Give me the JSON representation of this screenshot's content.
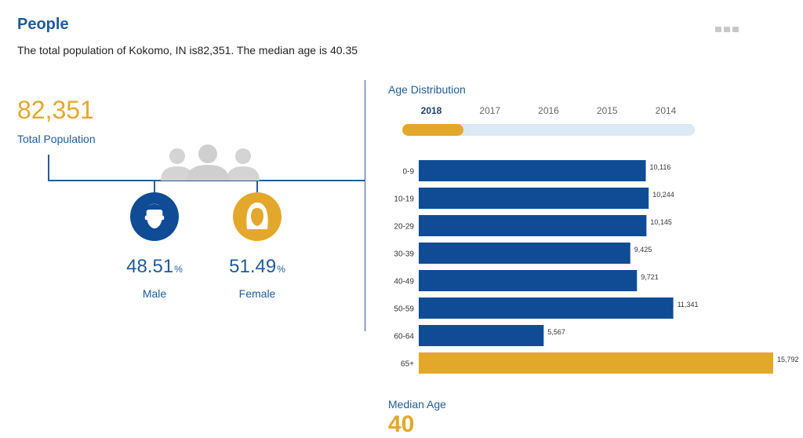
{
  "header": {
    "title": "People",
    "summary": "The total population of Kokomo, IN is82,351. The median age is 40.35"
  },
  "population": {
    "total": "82,351",
    "total_label": "Total Population"
  },
  "gender": {
    "male": {
      "value": "48.51",
      "unit": "%",
      "label": "Male"
    },
    "female": {
      "value": "51.49",
      "unit": "%",
      "label": "Female"
    }
  },
  "age_distribution": {
    "title": "Age Distribution",
    "years": [
      "2018",
      "2017",
      "2016",
      "2015",
      "2014"
    ],
    "selected_year": "2018"
  },
  "median": {
    "label": "Median Age",
    "value": "40"
  },
  "colors": {
    "primary": "#0f4c95",
    "accent": "#e3a82b",
    "track": "#dbe9f5"
  },
  "chart_data": {
    "type": "bar",
    "orientation": "horizontal",
    "categories": [
      "0-9",
      "10-19",
      "20-29",
      "30-39",
      "40-49",
      "50-59",
      "60-64",
      "65+"
    ],
    "values": [
      10116,
      10244,
      10145,
      9425,
      9721,
      11341,
      5567,
      15792
    ],
    "value_labels": [
      "10,116",
      "10,244",
      "10,145",
      "9,425",
      "9,721",
      "11,341",
      "5,567",
      "15,792"
    ],
    "highlight_category": "65+",
    "xlim": [
      0,
      15792
    ]
  }
}
